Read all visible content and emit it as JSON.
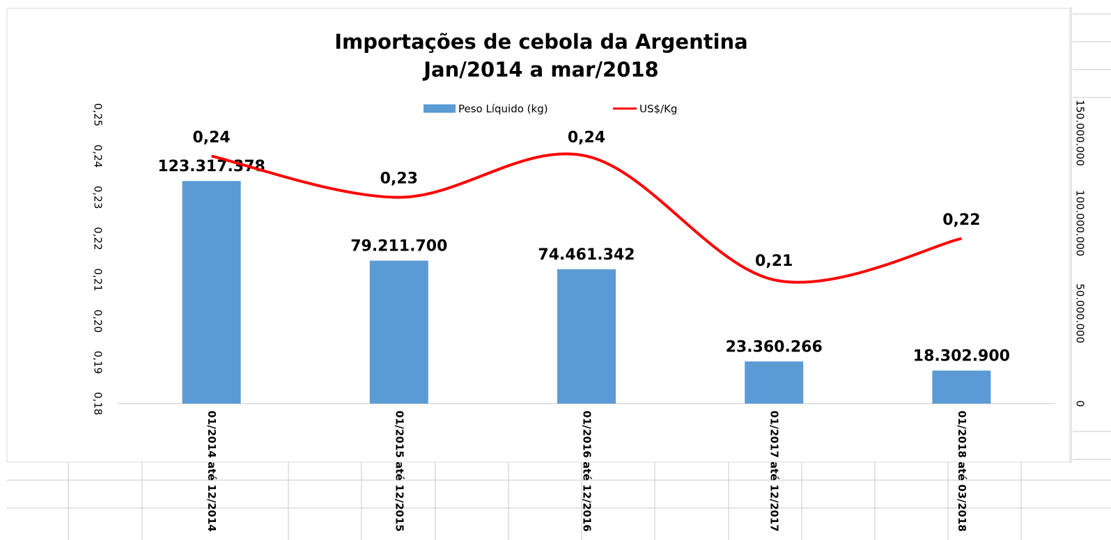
{
  "chart_data": {
    "type": "bar",
    "title": "Importações de cebola da Argentina",
    "subtitle": "Jan/2014 a mar/2018",
    "categories": [
      "01/2014 até 12/2014",
      "01/2015 até 12/2015",
      "01/2016 até 12/2016",
      "01/2017 até 12/2017",
      "01/2018 até 03/2018"
    ],
    "series": [
      {
        "name": "Peso Líquido (kg)",
        "type": "bar",
        "color": "#5b9bd5",
        "axis": "y2",
        "values": [
          123317378,
          79211700,
          74461342,
          23360266,
          18302900
        ],
        "value_labels": [
          "123.317.378",
          "79.211.700",
          "74.461.342",
          "23.360.266",
          "18.302.900"
        ]
      },
      {
        "name": "US$/Kg",
        "type": "line",
        "color": "#ff0000",
        "axis": "y",
        "values": [
          0.24,
          0.23,
          0.24,
          0.21,
          0.22
        ],
        "value_labels": [
          "0,24",
          "0,23",
          "0,24",
          "0,21",
          "0,22"
        ]
      }
    ],
    "ylim": [
      0.18,
      0.25
    ],
    "yticks": [
      {
        "value": 0.18,
        "label": "0,18"
      },
      {
        "value": 0.19,
        "label": "0,19"
      },
      {
        "value": 0.2,
        "label": "0,20"
      },
      {
        "value": 0.21,
        "label": "0,21"
      },
      {
        "value": 0.22,
        "label": "0,22"
      },
      {
        "value": 0.23,
        "label": "0,23"
      },
      {
        "value": 0.24,
        "label": "0,24"
      },
      {
        "value": 0.25,
        "label": "0,25"
      }
    ],
    "y2lim": [
      0,
      160000000
    ],
    "y2ticks": [
      0,
      {
        "value": 50000000,
        "label": "50.000.000"
      },
      {
        "value": 100000000,
        "label": "100.000.000"
      },
      {
        "value": 150000000,
        "label": "150.000.000"
      }
    ],
    "grid": false,
    "legend": "top"
  }
}
